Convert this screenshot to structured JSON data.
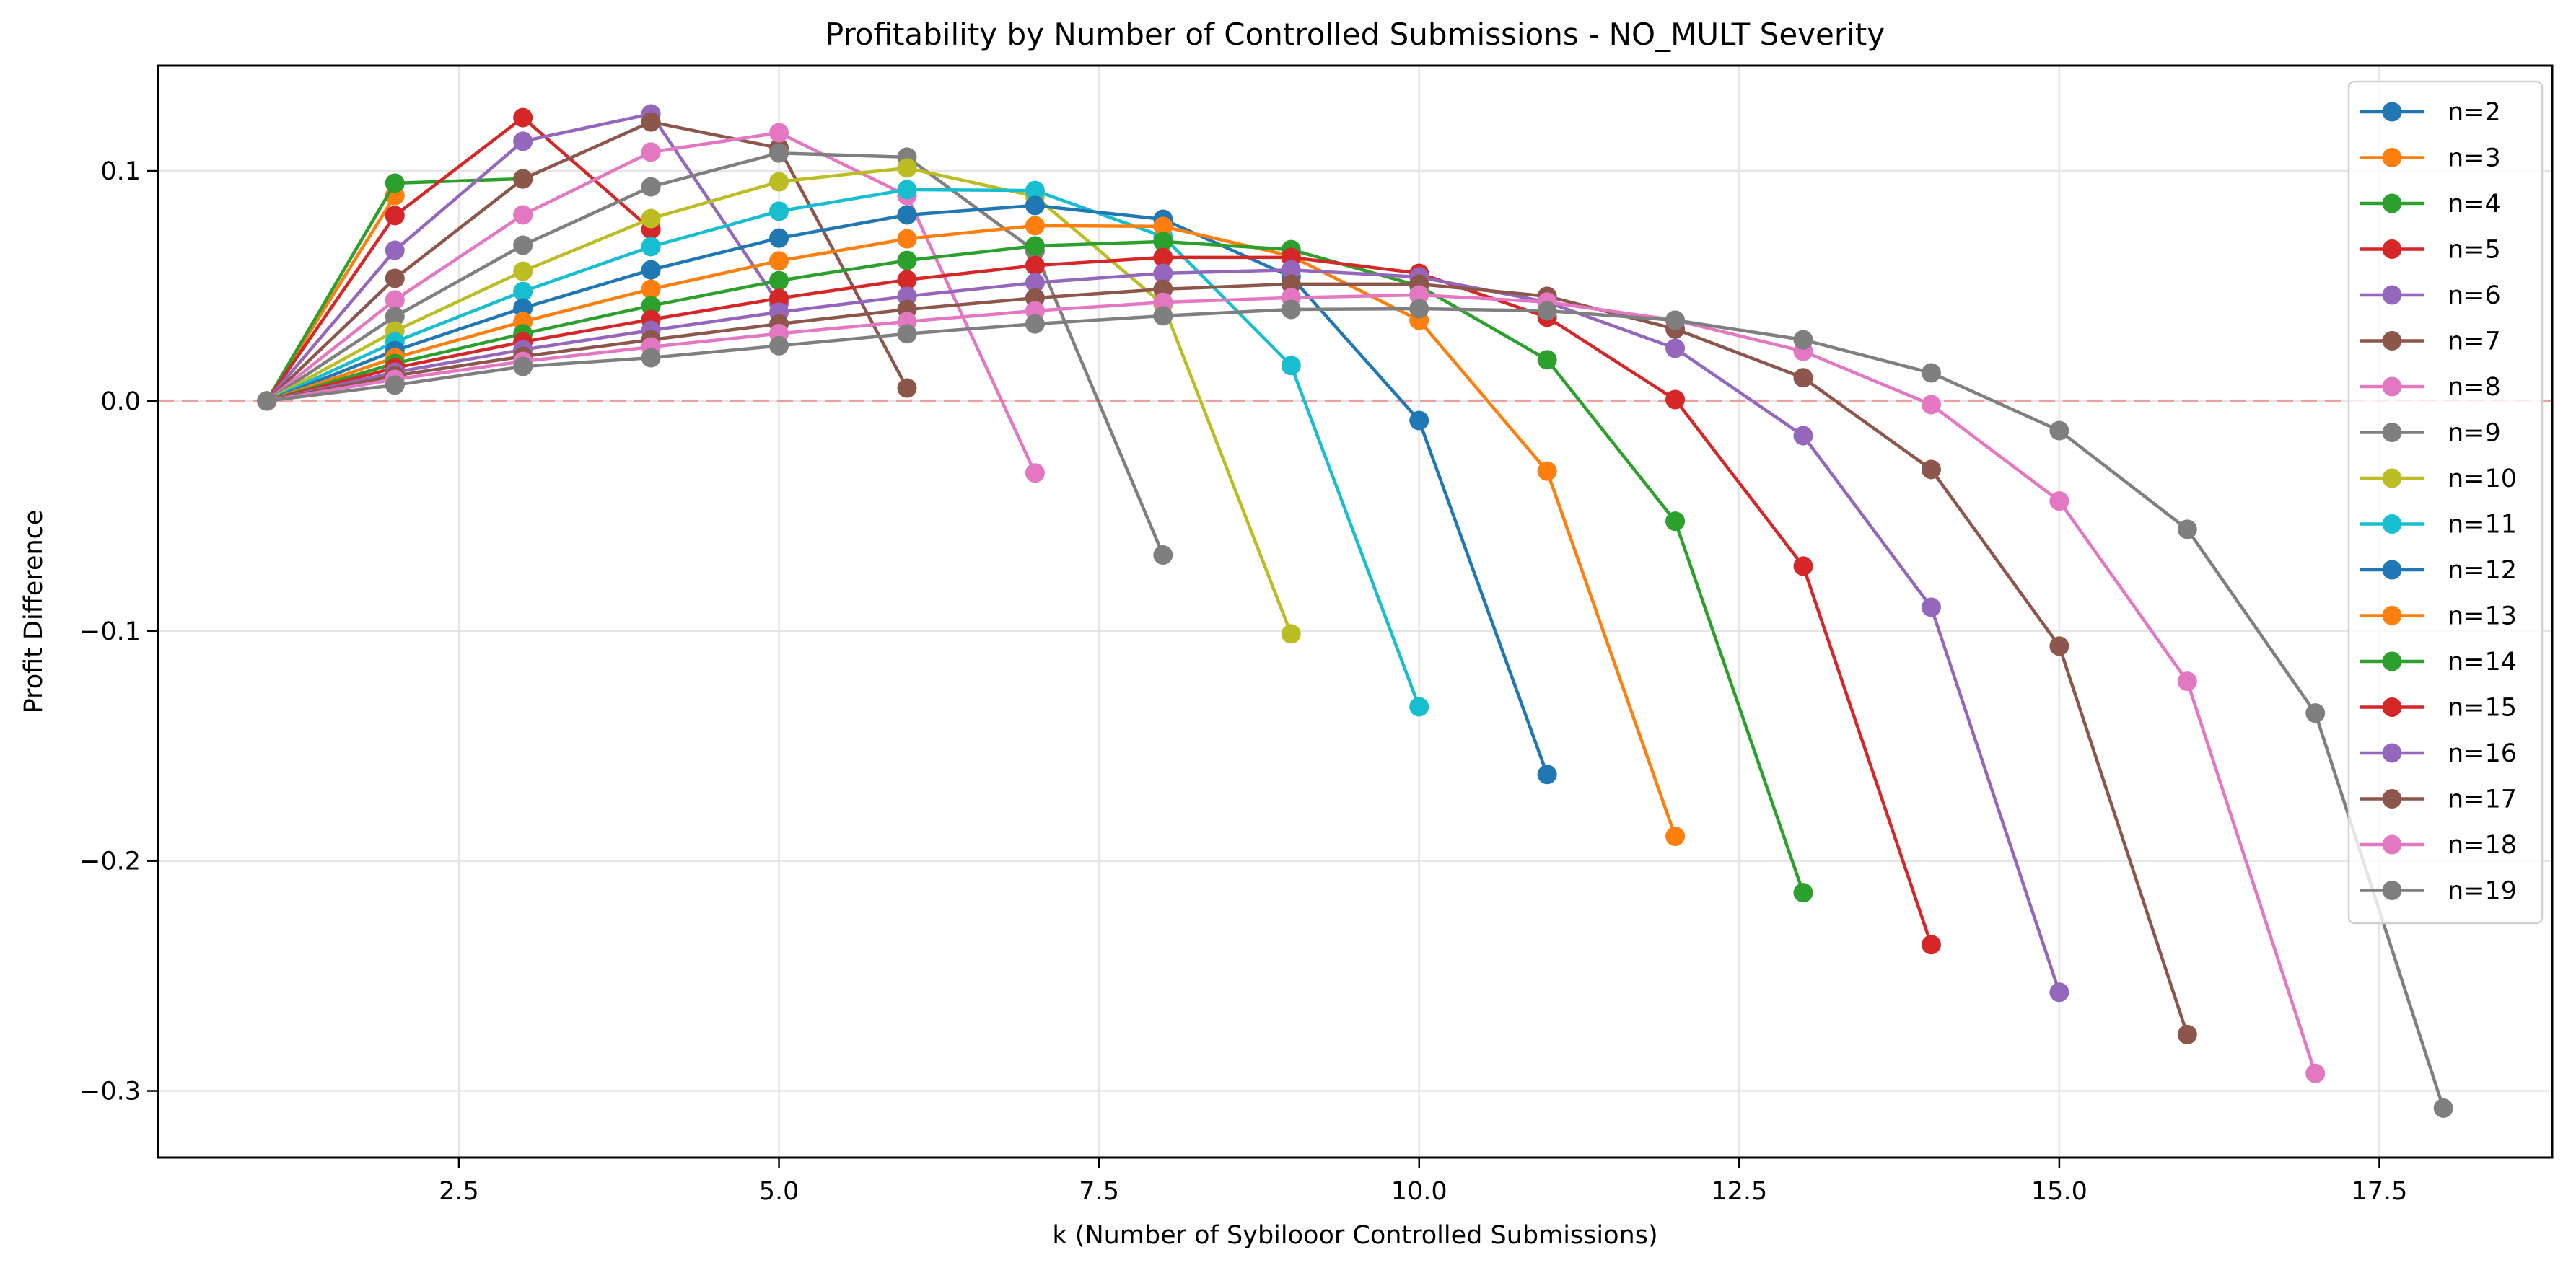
{
  "chart_data": {
    "type": "line",
    "title": "Profitability by Number of Controlled Submissions - NO_MULT Severity",
    "xlabel": "k (Number of Sybilooor Controlled Submissions)",
    "ylabel": "Profit Difference",
    "xlim": [
      0.15,
      18.85
    ],
    "ylim": [
      -0.329,
      0.1458
    ],
    "xticks": [
      2.5,
      5.0,
      7.5,
      10.0,
      12.5,
      15.0,
      17.5
    ],
    "xtick_labels": [
      "2.5",
      "5.0",
      "7.5",
      "10.0",
      "12.5",
      "15.0",
      "17.5"
    ],
    "yticks": [
      0.1,
      0.0,
      -0.1,
      -0.2,
      -0.3
    ],
    "ytick_labels": [
      "0.1",
      "0.0",
      "−0.1",
      "−0.2",
      "−0.3"
    ],
    "grid": true,
    "reference_line": {
      "y": 0,
      "style": "dashed",
      "color": "#f08080"
    },
    "legend_position": "upper-right",
    "series": [
      {
        "name": "n=2",
        "color": "#1f77b4",
        "x": [
          1
        ],
        "y": [
          0.0
        ]
      },
      {
        "name": "n=3",
        "color": "#ff7f0e",
        "x": [
          1,
          2
        ],
        "y": [
          0.0,
          0.0893
        ]
      },
      {
        "name": "n=4",
        "color": "#2ca02c",
        "x": [
          1,
          2,
          3
        ],
        "y": [
          0.0,
          0.0947,
          0.0966
        ]
      },
      {
        "name": "n=5",
        "color": "#d62728",
        "x": [
          1,
          2,
          3,
          4
        ],
        "y": [
          0.0,
          0.0806,
          0.1232,
          0.0746
        ]
      },
      {
        "name": "n=6",
        "color": "#9467bd",
        "x": [
          1,
          2,
          3,
          4,
          5
        ],
        "y": [
          0.0,
          0.0655,
          0.1129,
          0.1248,
          0.0423
        ]
      },
      {
        "name": "n=7",
        "color": "#8c564b",
        "x": [
          1,
          2,
          3,
          4,
          5,
          6
        ],
        "y": [
          0.0,
          0.0533,
          0.0965,
          0.1213,
          0.11,
          0.0056
        ]
      },
      {
        "name": "n=8",
        "color": "#e377c2",
        "x": [
          1,
          2,
          3,
          4,
          5,
          6,
          7
        ],
        "y": [
          0.0,
          0.0439,
          0.0809,
          0.1082,
          0.1166,
          0.0893,
          -0.0313
        ]
      },
      {
        "name": "n=9",
        "color": "#7f7f7f",
        "x": [
          1,
          2,
          3,
          4,
          5,
          6,
          7,
          8
        ],
        "y": [
          0.0,
          0.0367,
          0.0677,
          0.0931,
          0.1078,
          0.106,
          0.0652,
          -0.067
        ]
      },
      {
        "name": "n=10",
        "color": "#bcbd22",
        "x": [
          1,
          2,
          3,
          4,
          5,
          6,
          7,
          8,
          9
        ],
        "y": [
          0.0,
          0.0304,
          0.0564,
          0.0793,
          0.0953,
          0.1013,
          0.089,
          0.042,
          -0.1013
        ]
      },
      {
        "name": "n=11",
        "color": "#17becf",
        "x": [
          1,
          2,
          3,
          4,
          5,
          6,
          7,
          8,
          9,
          10
        ],
        "y": [
          0.0,
          0.0257,
          0.0476,
          0.0671,
          0.0825,
          0.0919,
          0.0915,
          0.0715,
          0.0154,
          -0.133
        ]
      },
      {
        "name": "n=12",
        "color": "#1f77b4",
        "x": [
          1,
          2,
          3,
          4,
          5,
          6,
          7,
          8,
          9,
          10,
          11
        ],
        "y": [
          0.0,
          0.0219,
          0.0404,
          0.057,
          0.0708,
          0.0809,
          0.085,
          0.079,
          0.054,
          -0.0085,
          -0.1624
        ]
      },
      {
        "name": "n=13",
        "color": "#ff7f0e",
        "x": [
          1,
          2,
          3,
          4,
          5,
          6,
          7,
          8,
          9,
          10,
          11,
          12
        ],
        "y": [
          0.0,
          0.0188,
          0.0345,
          0.0486,
          0.0609,
          0.0705,
          0.0762,
          0.0759,
          0.063,
          0.0351,
          -0.0305,
          -0.1893
        ]
      },
      {
        "name": "n=14",
        "color": "#2ca02c",
        "x": [
          1,
          2,
          3,
          4,
          5,
          6,
          7,
          8,
          9,
          10,
          11,
          12,
          13
        ],
        "y": [
          0.0,
          0.0163,
          0.0292,
          0.0414,
          0.0523,
          0.0611,
          0.0674,
          0.0693,
          0.0658,
          0.05,
          0.0179,
          -0.0523,
          -0.2138
        ]
      },
      {
        "name": "n=15",
        "color": "#d62728",
        "x": [
          1,
          2,
          3,
          4,
          5,
          6,
          7,
          8,
          9,
          10,
          11,
          12,
          13,
          14
        ],
        "y": [
          0.0,
          0.0144,
          0.0257,
          0.0354,
          0.0446,
          0.0527,
          0.0589,
          0.0624,
          0.0624,
          0.0555,
          0.0364,
          0.0006,
          -0.0718,
          -0.2364
        ]
      },
      {
        "name": "n=16",
        "color": "#9467bd",
        "x": [
          1,
          2,
          3,
          4,
          5,
          6,
          7,
          8,
          9,
          10,
          11,
          12,
          13,
          14,
          15
        ],
        "y": [
          0.0,
          0.0125,
          0.0223,
          0.0307,
          0.0386,
          0.0455,
          0.0514,
          0.0555,
          0.057,
          0.0539,
          0.043,
          0.0229,
          -0.0151,
          -0.0897,
          -0.2571
        ]
      },
      {
        "name": "n=17",
        "color": "#8c564b",
        "x": [
          1,
          2,
          3,
          4,
          5,
          6,
          7,
          8,
          9,
          10,
          11,
          12,
          13,
          14,
          15,
          16
        ],
        "y": [
          0.0,
          0.011,
          0.0194,
          0.0266,
          0.0335,
          0.0398,
          0.0448,
          0.0486,
          0.0508,
          0.0508,
          0.0455,
          0.0313,
          0.0101,
          -0.0298,
          -0.1066,
          -0.2755
        ]
      },
      {
        "name": "n=18",
        "color": "#e377c2",
        "x": [
          1,
          2,
          3,
          4,
          5,
          6,
          7,
          8,
          9,
          10,
          11,
          12,
          13,
          14,
          15,
          16,
          17
        ],
        "y": [
          0.0,
          0.0094,
          0.0172,
          0.0235,
          0.0293,
          0.0345,
          0.0392,
          0.0429,
          0.0449,
          0.0461,
          0.043,
          0.0351,
          0.0216,
          -0.0016,
          -0.0435,
          -0.1219,
          -0.2924
        ]
      },
      {
        "name": "n=19",
        "color": "#7f7f7f",
        "x": [
          1,
          2,
          3,
          4,
          5,
          6,
          7,
          8,
          9,
          10,
          11,
          12,
          13,
          14,
          15,
          16,
          17,
          18
        ],
        "y": [
          0.0,
          0.0069,
          0.015,
          0.0188,
          0.024,
          0.0292,
          0.0335,
          0.037,
          0.0398,
          0.0401,
          0.0392,
          0.0351,
          0.0266,
          0.0122,
          -0.0129,
          -0.0558,
          -0.1357,
          -0.3075
        ]
      }
    ]
  }
}
